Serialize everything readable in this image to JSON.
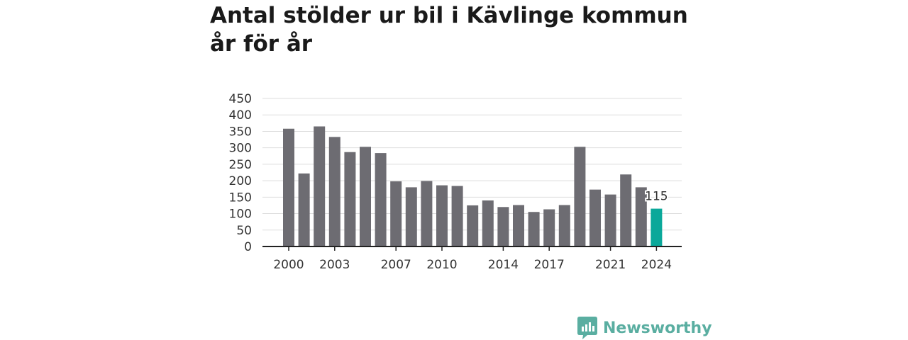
{
  "colors": {
    "bar": "#6d6c72",
    "highlight": "#0aa89a",
    "grid": "#dddddd",
    "axis": "#222222",
    "brand": "#5aaea1"
  },
  "brand": {
    "name": "Newsworthy",
    "icon": "chart-speech-bubble-icon"
  },
  "chart_data": {
    "type": "bar",
    "title": "Antal stölder ur bil i Kävlinge kommun år för år",
    "xlabel": "",
    "ylabel": "",
    "ylim": [
      0,
      450
    ],
    "y_ticks": [
      0,
      50,
      100,
      150,
      200,
      250,
      300,
      350,
      400,
      450
    ],
    "categories": [
      "2000",
      "2001",
      "2002",
      "2003",
      "2004",
      "2005",
      "2006",
      "2007",
      "2008",
      "2009",
      "2010",
      "2011",
      "2012",
      "2013",
      "2014",
      "2015",
      "2016",
      "2017",
      "2018",
      "2019",
      "2020",
      "2021",
      "2022",
      "2023",
      "2024"
    ],
    "x_tick_labels": [
      "2000",
      "2003",
      "2007",
      "2010",
      "2014",
      "2017",
      "2021",
      "2024"
    ],
    "values": [
      358,
      222,
      365,
      333,
      287,
      303,
      284,
      198,
      180,
      199,
      186,
      184,
      125,
      140,
      120,
      126,
      105,
      113,
      126,
      303,
      173,
      158,
      219,
      180,
      115
    ],
    "highlight_category": "2024",
    "data_labels": [
      {
        "category": "2024",
        "text": "115"
      }
    ],
    "grid": true,
    "legend": "none"
  }
}
